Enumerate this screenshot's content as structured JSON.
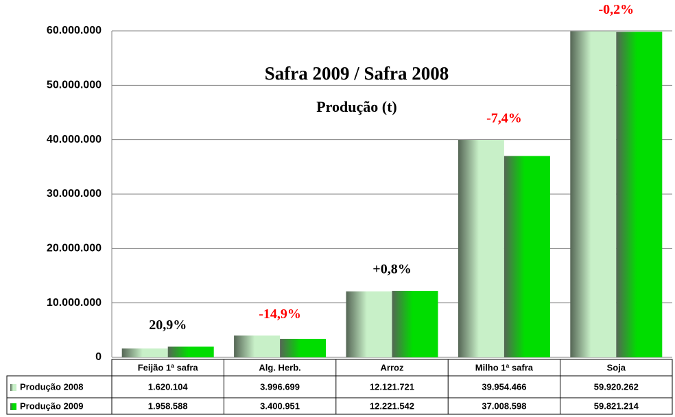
{
  "chart_data": {
    "type": "bar",
    "title": "Safra 2009 / Safra 2008",
    "subtitle": "Produção (t)",
    "categories": [
      "Feijão 1ª safra",
      "Alg. Herb.",
      "Arroz",
      "Milho 1ª safra",
      "Soja"
    ],
    "series": [
      {
        "name": "Produção 2008",
        "color": "#c8f0c8",
        "values": [
          1620104,
          3996699,
          12121721,
          39954466,
          59920262
        ],
        "value_labels": [
          "1.620.104",
          "3.996.699",
          "12.121.721",
          "39.954.466",
          "59.920.262"
        ]
      },
      {
        "name": "Produção 2009",
        "color": "#00dd00",
        "values": [
          1958588,
          3400951,
          12221542,
          37008598,
          59821214
        ],
        "value_labels": [
          "1.958.588",
          "3.400.951",
          "12.221.542",
          "37.008.598",
          "59.821.214"
        ]
      }
    ],
    "annotations": [
      {
        "text": "20,9%",
        "color": "#000000"
      },
      {
        "text": "-14,9%",
        "color": "#ff0000"
      },
      {
        "text": "+0,8%",
        "color": "#000000"
      },
      {
        "text": "-7,4%",
        "color": "#ff0000"
      },
      {
        "text": "-0,2%",
        "color": "#ff0000"
      }
    ],
    "ylim": [
      0,
      60000000
    ],
    "yticks": [
      {
        "value": 0,
        "label": "0"
      },
      {
        "value": 10000000,
        "label": "10.000.000"
      },
      {
        "value": 20000000,
        "label": "20.000.000"
      },
      {
        "value": 30000000,
        "label": "30.000.000"
      },
      {
        "value": 40000000,
        "label": "40.000.000"
      },
      {
        "value": 50000000,
        "label": "50.000.000"
      },
      {
        "value": 60000000,
        "label": "60.000.000"
      }
    ],
    "grid": true
  }
}
